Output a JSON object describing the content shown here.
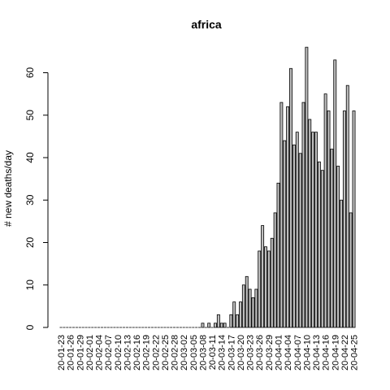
{
  "chart_data": {
    "type": "bar",
    "title": "africa",
    "xlabel": "",
    "ylabel": "# new deaths/day",
    "ylim": [
      0,
      66
    ],
    "yticks": [
      0,
      10,
      20,
      30,
      40,
      50,
      60
    ],
    "bar_fill": "#bebebe",
    "bar_stroke": "#000000",
    "grid": false,
    "legend": "none",
    "tick_labels": [
      "20-01-23",
      "20-01-26",
      "20-01-29",
      "20-02-01",
      "20-02-04",
      "20-02-07",
      "20-02-10",
      "20-02-13",
      "20-02-16",
      "20-02-19",
      "20-02-22",
      "20-02-25",
      "20-02-28",
      "20-03-02",
      "20-03-05",
      "20-03-08",
      "20-03-11",
      "20-03-14",
      "20-03-17",
      "20-03-20",
      "20-03-23",
      "20-03-26",
      "20-03-29",
      "20-04-01",
      "20-04-04",
      "20-04-07",
      "20-04-10",
      "20-04-13",
      "20-04-16",
      "20-04-19",
      "20-04-22",
      "20-04-25"
    ],
    "categories": [
      "20-01-23",
      "20-01-24",
      "20-01-25",
      "20-01-26",
      "20-01-27",
      "20-01-28",
      "20-01-29",
      "20-01-30",
      "20-01-31",
      "20-02-01",
      "20-02-02",
      "20-02-03",
      "20-02-04",
      "20-02-05",
      "20-02-06",
      "20-02-07",
      "20-02-08",
      "20-02-09",
      "20-02-10",
      "20-02-11",
      "20-02-12",
      "20-02-13",
      "20-02-14",
      "20-02-15",
      "20-02-16",
      "20-02-17",
      "20-02-18",
      "20-02-19",
      "20-02-20",
      "20-02-21",
      "20-02-22",
      "20-02-23",
      "20-02-24",
      "20-02-25",
      "20-02-26",
      "20-02-27",
      "20-02-28",
      "20-02-29",
      "20-03-01",
      "20-03-02",
      "20-03-03",
      "20-03-04",
      "20-03-05",
      "20-03-06",
      "20-03-07",
      "20-03-08",
      "20-03-09",
      "20-03-10",
      "20-03-11",
      "20-03-12",
      "20-03-13",
      "20-03-14",
      "20-03-15",
      "20-03-16",
      "20-03-17",
      "20-03-18",
      "20-03-19",
      "20-03-20",
      "20-03-21",
      "20-03-22",
      "20-03-23",
      "20-03-24",
      "20-03-25",
      "20-03-26",
      "20-03-27",
      "20-03-28",
      "20-03-29",
      "20-03-30",
      "20-03-31",
      "20-04-01",
      "20-04-02",
      "20-04-03",
      "20-04-04",
      "20-04-05",
      "20-04-06",
      "20-04-07",
      "20-04-08",
      "20-04-09",
      "20-04-10",
      "20-04-11",
      "20-04-12",
      "20-04-13",
      "20-04-14",
      "20-04-15",
      "20-04-16",
      "20-04-17",
      "20-04-18",
      "20-04-19",
      "20-04-20",
      "20-04-21",
      "20-04-22",
      "20-04-23",
      "20-04-24",
      "20-04-25"
    ],
    "values": [
      0,
      0,
      0,
      0,
      0,
      0,
      0,
      0,
      0,
      0,
      0,
      0,
      0,
      0,
      0,
      0,
      0,
      0,
      0,
      0,
      0,
      0,
      0,
      0,
      0,
      0,
      0,
      0,
      0,
      0,
      0,
      0,
      0,
      0,
      0,
      0,
      0,
      0,
      0,
      0,
      0,
      0,
      0,
      0,
      0,
      1,
      0,
      1,
      0,
      1,
      3,
      1,
      1,
      0,
      3,
      6,
      3,
      6,
      10,
      12,
      9,
      7,
      9,
      18,
      24,
      19,
      18,
      21,
      27,
      34,
      53,
      44,
      52,
      61,
      43,
      46,
      41,
      53,
      66,
      49,
      46,
      46,
      39,
      37,
      55,
      51,
      42,
      63,
      38,
      30,
      51,
      57,
      27,
      51
    ]
  }
}
